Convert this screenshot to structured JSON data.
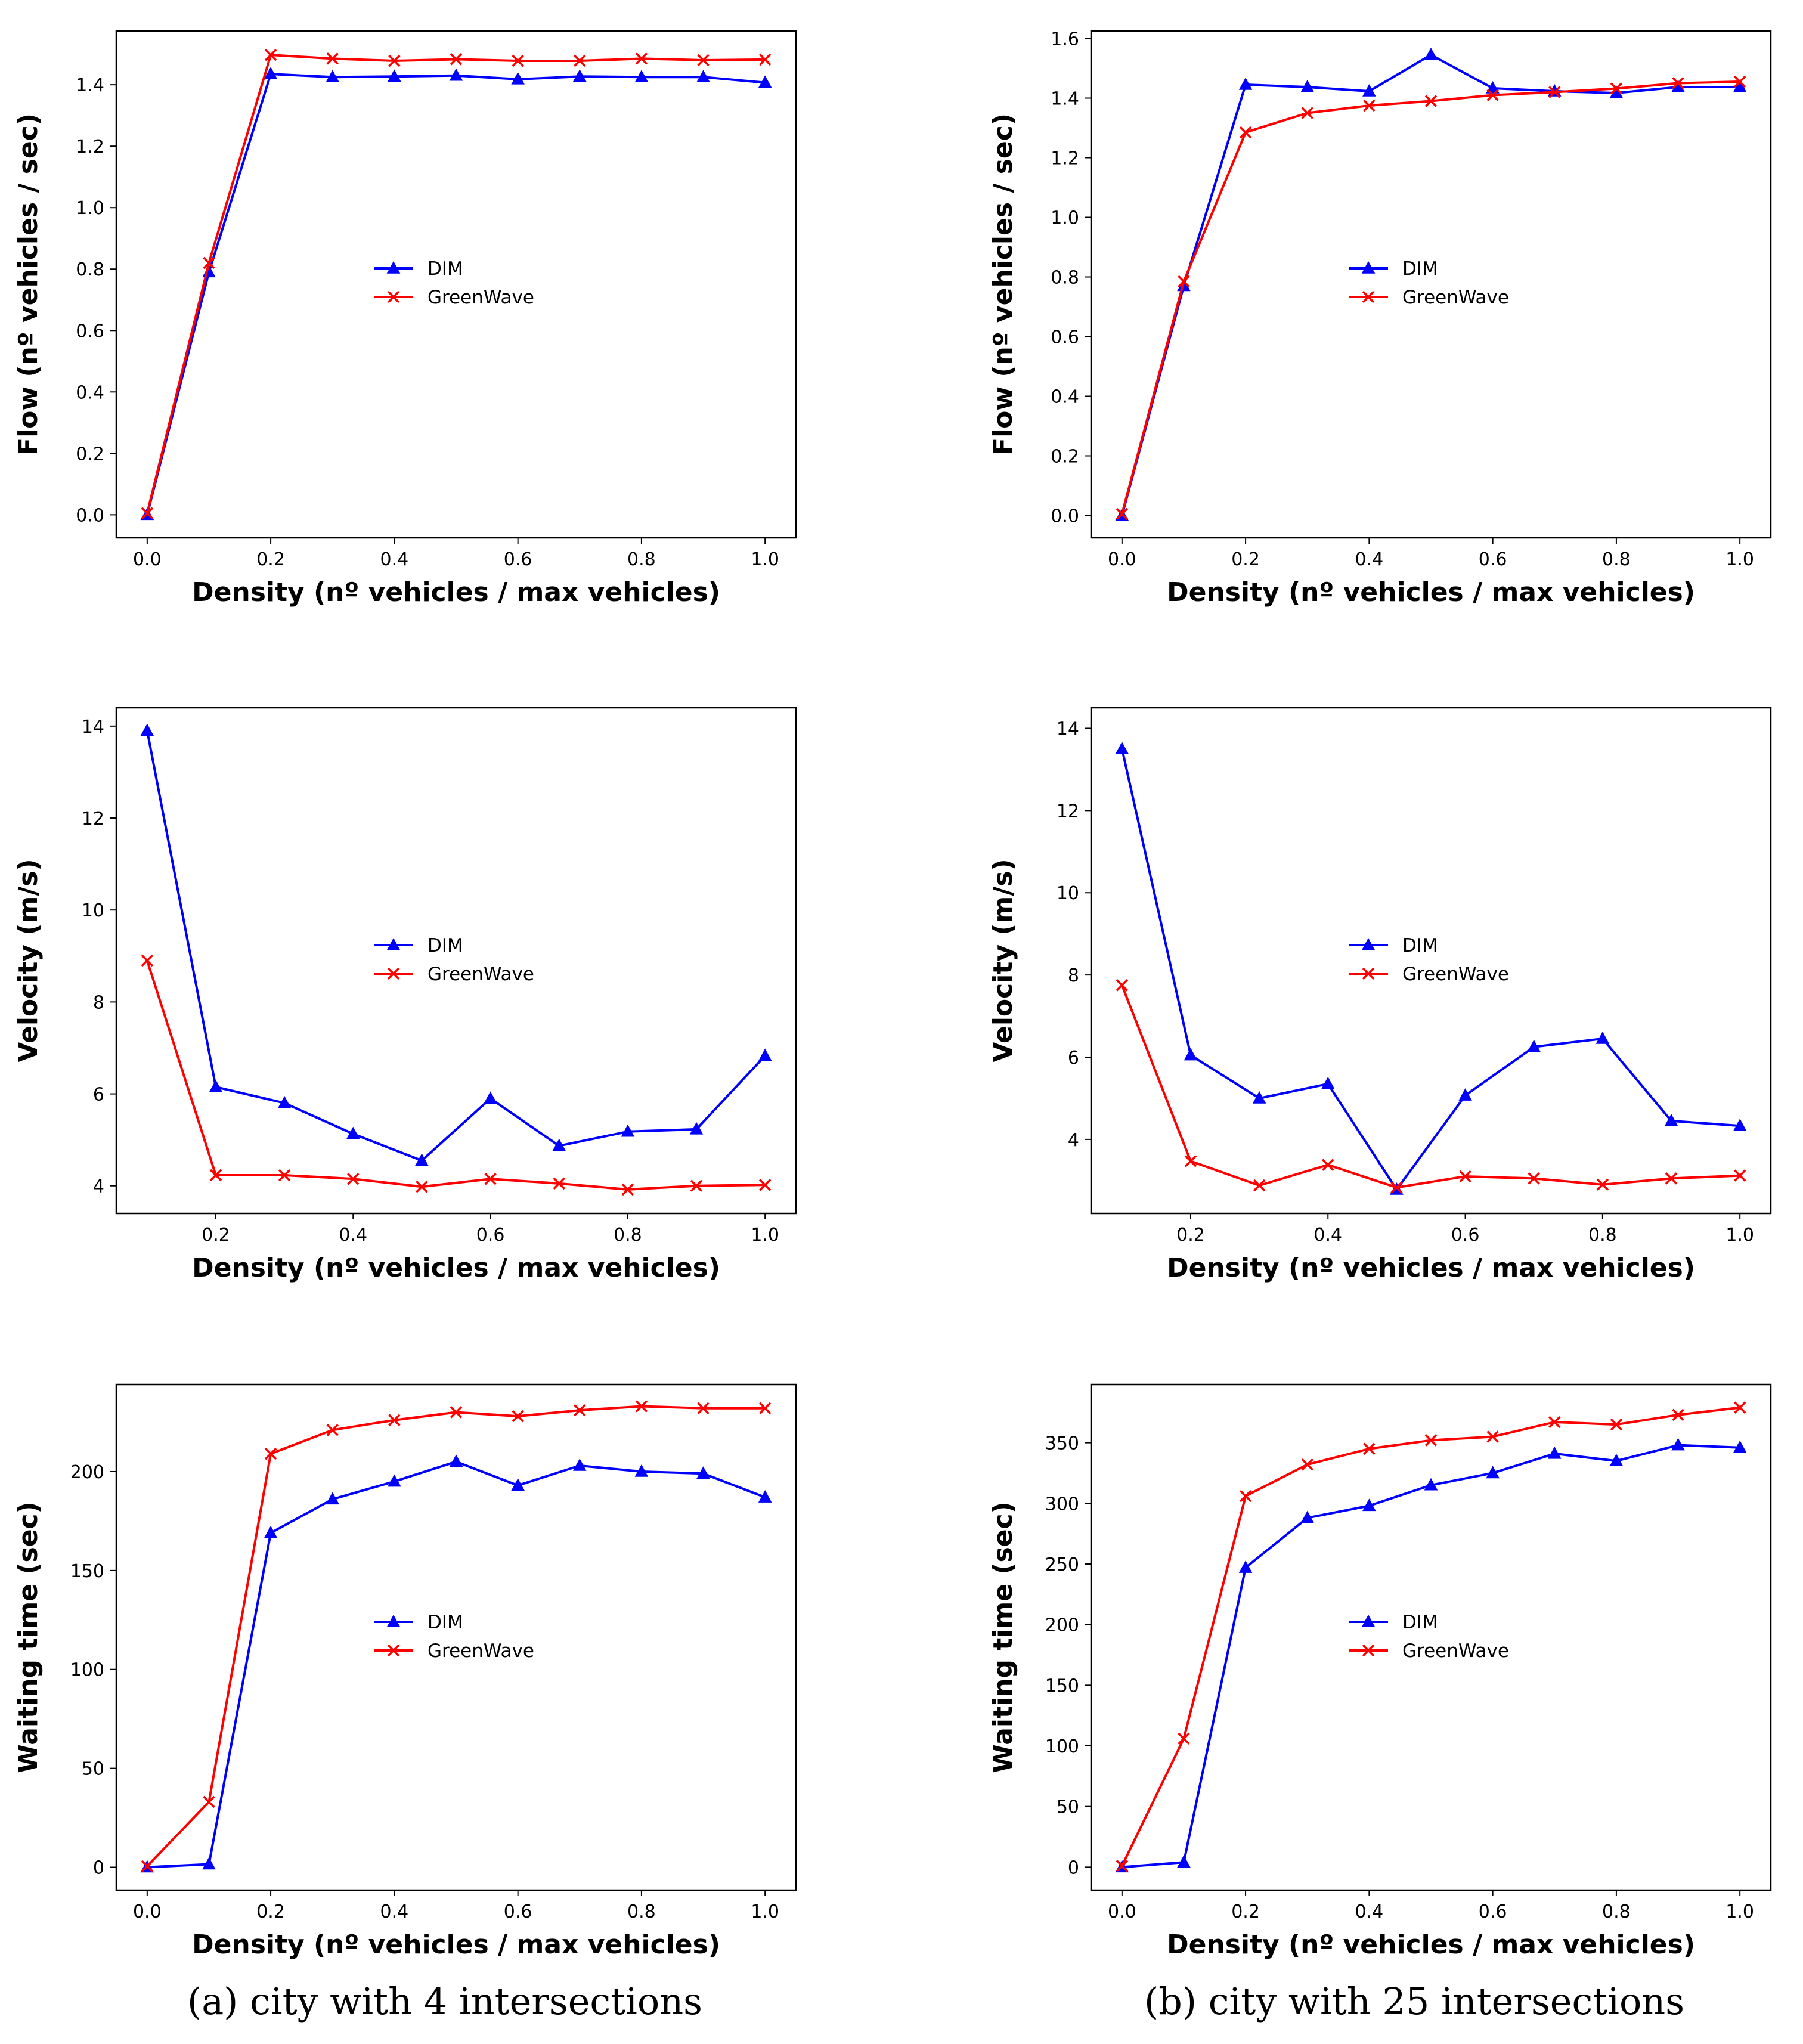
{
  "colors": {
    "dim": "#0000ff",
    "greenwave": "#ff0000"
  },
  "captions": {
    "left": "(a)  city with 4 intersections",
    "right": "(b)  city with 25 intersections"
  },
  "chart_data": [
    {
      "type": "line",
      "title": "",
      "xlabel": "Density (nº vehicles / max vehicles)",
      "ylabel": "Flow (nº vehicles / sec)",
      "xlim": [
        -0.05,
        1.05
      ],
      "ylim": [
        -0.075,
        1.575
      ],
      "xticks": [
        0,
        0.2,
        0.4,
        0.6,
        0.8,
        1.0
      ],
      "xtick_labels": [
        "0.0",
        "0.2",
        "0.4",
        "0.6",
        "0.8",
        "1.0"
      ],
      "yticks": [
        0,
        0.2,
        0.4,
        0.6,
        0.8,
        1.0,
        1.2,
        1.4
      ],
      "ytick_labels": [
        "0.0",
        "0.2",
        "0.4",
        "0.6",
        "0.8",
        "1.0",
        "1.2",
        "1.4"
      ],
      "legend": "center",
      "series": [
        {
          "name": "DIM",
          "marker": "triangle",
          "x": [
            0,
            0.1,
            0.2,
            0.3,
            0.4,
            0.5,
            0.6,
            0.7,
            0.8,
            0.9,
            1.0
          ],
          "values": [
            0.0,
            0.79,
            1.435,
            1.425,
            1.427,
            1.43,
            1.418,
            1.427,
            1.425,
            1.425,
            1.407
          ]
        },
        {
          "name": "GreenWave",
          "marker": "x",
          "x": [
            0,
            0.1,
            0.2,
            0.3,
            0.4,
            0.5,
            0.6,
            0.7,
            0.8,
            0.9,
            1.0
          ],
          "values": [
            0.005,
            0.82,
            1.497,
            1.485,
            1.478,
            1.483,
            1.478,
            1.478,
            1.485,
            1.48,
            1.482
          ]
        }
      ]
    },
    {
      "type": "line",
      "title": "",
      "xlabel": "Density (nº vehicles / max vehicles)",
      "ylabel": "Flow (nº vehicles / sec)",
      "xlim": [
        -0.05,
        1.05
      ],
      "ylim": [
        -0.075,
        1.625
      ],
      "xticks": [
        0,
        0.2,
        0.4,
        0.6,
        0.8,
        1.0
      ],
      "xtick_labels": [
        "0.0",
        "0.2",
        "0.4",
        "0.6",
        "0.8",
        "1.0"
      ],
      "yticks": [
        0,
        0.2,
        0.4,
        0.6,
        0.8,
        1.0,
        1.2,
        1.4,
        1.6
      ],
      "ytick_labels": [
        "0.0",
        "0.2",
        "0.4",
        "0.6",
        "0.8",
        "1.0",
        "1.2",
        "1.4",
        "1.6"
      ],
      "legend": "center",
      "series": [
        {
          "name": "DIM",
          "marker": "triangle",
          "x": [
            0,
            0.1,
            0.2,
            0.3,
            0.4,
            0.5,
            0.6,
            0.7,
            0.8,
            0.9,
            1.0
          ],
          "values": [
            0.0,
            0.77,
            1.445,
            1.437,
            1.423,
            1.545,
            1.433,
            1.423,
            1.417,
            1.437,
            1.437
          ]
        },
        {
          "name": "GreenWave",
          "marker": "x",
          "x": [
            0,
            0.1,
            0.2,
            0.3,
            0.4,
            0.5,
            0.6,
            0.7,
            0.8,
            0.9,
            1.0
          ],
          "values": [
            0.005,
            0.785,
            1.285,
            1.35,
            1.375,
            1.39,
            1.41,
            1.42,
            1.432,
            1.45,
            1.455
          ]
        }
      ]
    },
    {
      "type": "line",
      "title": "",
      "xlabel": "Density (nº vehicles / max vehicles)",
      "ylabel": "Velocity (m/s)",
      "xlim": [
        0.055,
        1.045
      ],
      "ylim": [
        3.4,
        14.4
      ],
      "xticks": [
        0.2,
        0.4,
        0.6,
        0.8,
        1.0
      ],
      "xtick_labels": [
        "0.2",
        "0.4",
        "0.6",
        "0.8",
        "1.0"
      ],
      "yticks": [
        4,
        6,
        8,
        10,
        12,
        14
      ],
      "ytick_labels": [
        "4",
        "6",
        "8",
        "10",
        "12",
        "14"
      ],
      "legend": "center",
      "series": [
        {
          "name": "DIM",
          "marker": "triangle",
          "x": [
            0.1,
            0.2,
            0.3,
            0.4,
            0.5,
            0.6,
            0.7,
            0.8,
            0.9,
            1.0
          ],
          "values": [
            13.9,
            6.15,
            5.8,
            5.13,
            4.55,
            5.9,
            4.87,
            5.18,
            5.23,
            6.83
          ]
        },
        {
          "name": "GreenWave",
          "marker": "x",
          "x": [
            0.1,
            0.2,
            0.3,
            0.4,
            0.5,
            0.6,
            0.7,
            0.8,
            0.9,
            1.0
          ],
          "values": [
            8.9,
            4.23,
            4.23,
            4.15,
            3.98,
            4.15,
            4.05,
            3.92,
            4.0,
            4.02
          ]
        }
      ]
    },
    {
      "type": "line",
      "title": "",
      "xlabel": "Density (nº vehicles / max vehicles)",
      "ylabel": "Velocity (m/s)",
      "xlim": [
        0.055,
        1.045
      ],
      "ylim": [
        2.2,
        14.5
      ],
      "xticks": [
        0.2,
        0.4,
        0.6,
        0.8,
        1.0
      ],
      "xtick_labels": [
        "0.2",
        "0.4",
        "0.6",
        "0.8",
        "1.0"
      ],
      "yticks": [
        4,
        6,
        8,
        10,
        12,
        14
      ],
      "ytick_labels": [
        "4",
        "6",
        "8",
        "10",
        "12",
        "14"
      ],
      "legend": "center",
      "series": [
        {
          "name": "DIM",
          "marker": "triangle",
          "x": [
            0.1,
            0.2,
            0.3,
            0.4,
            0.5,
            0.6,
            0.7,
            0.8,
            0.9,
            1.0
          ],
          "values": [
            13.5,
            6.05,
            5.0,
            5.35,
            2.78,
            5.07,
            6.25,
            6.45,
            4.45,
            4.33
          ]
        },
        {
          "name": "GreenWave",
          "marker": "x",
          "x": [
            0.1,
            0.2,
            0.3,
            0.4,
            0.5,
            0.6,
            0.7,
            0.8,
            0.9,
            1.0
          ],
          "values": [
            7.75,
            3.47,
            2.88,
            3.38,
            2.83,
            3.1,
            3.05,
            2.9,
            3.05,
            3.12
          ]
        }
      ]
    },
    {
      "type": "line",
      "title": "",
      "xlabel": "Density (nº vehicles / max vehicles)",
      "ylabel": "Waiting time (sec)",
      "xlim": [
        -0.05,
        1.05
      ],
      "ylim": [
        -11.6,
        244
      ],
      "xticks": [
        0,
        0.2,
        0.4,
        0.6,
        0.8,
        1.0
      ],
      "xtick_labels": [
        "0.0",
        "0.2",
        "0.4",
        "0.6",
        "0.8",
        "1.0"
      ],
      "yticks": [
        0,
        50,
        100,
        150,
        200
      ],
      "ytick_labels": [
        "0",
        "50",
        "100",
        "150",
        "200"
      ],
      "legend": "center",
      "series": [
        {
          "name": "DIM",
          "marker": "triangle",
          "x": [
            0,
            0.1,
            0.2,
            0.3,
            0.4,
            0.5,
            0.6,
            0.7,
            0.8,
            0.9,
            1.0
          ],
          "values": [
            0,
            1.5,
            169,
            186,
            195,
            205,
            193,
            203,
            200,
            199,
            187
          ]
        },
        {
          "name": "GreenWave",
          "marker": "x",
          "x": [
            0,
            0.1,
            0.2,
            0.3,
            0.4,
            0.5,
            0.6,
            0.7,
            0.8,
            0.9,
            1.0
          ],
          "values": [
            0.5,
            33,
            209,
            221,
            226,
            230,
            228,
            231,
            233,
            232,
            232
          ]
        }
      ]
    },
    {
      "type": "line",
      "title": "",
      "xlabel": "Density (nº vehicles / max vehicles)",
      "ylabel": "Waiting time (sec)",
      "xlim": [
        -0.05,
        1.05
      ],
      "ylim": [
        -19,
        398
      ],
      "xticks": [
        0,
        0.2,
        0.4,
        0.6,
        0.8,
        1.0
      ],
      "xtick_labels": [
        "0.0",
        "0.2",
        "0.4",
        "0.6",
        "0.8",
        "1.0"
      ],
      "yticks": [
        0,
        50,
        100,
        150,
        200,
        250,
        300,
        350
      ],
      "ytick_labels": [
        "0",
        "50",
        "100",
        "150",
        "200",
        "250",
        "300",
        "350"
      ],
      "legend": "center",
      "series": [
        {
          "name": "DIM",
          "marker": "triangle",
          "x": [
            0,
            0.1,
            0.2,
            0.3,
            0.4,
            0.5,
            0.6,
            0.7,
            0.8,
            0.9,
            1.0
          ],
          "values": [
            0,
            4,
            247,
            288,
            298,
            315,
            325,
            341,
            335,
            348,
            346
          ]
        },
        {
          "name": "GreenWave",
          "marker": "x",
          "x": [
            0,
            0.1,
            0.2,
            0.3,
            0.4,
            0.5,
            0.6,
            0.7,
            0.8,
            0.9,
            1.0
          ],
          "values": [
            1,
            106,
            306,
            332,
            345,
            352,
            355,
            367,
            365,
            373,
            379
          ]
        }
      ]
    }
  ]
}
